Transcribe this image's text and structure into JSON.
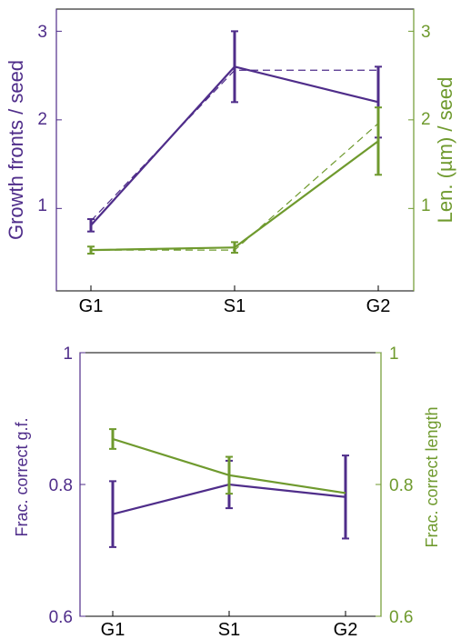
{
  "colors": {
    "left": "#4f2d8a",
    "right": "#6f9a2e",
    "axis": "#000000"
  },
  "chart_data": [
    {
      "type": "line",
      "categories": [
        "G1",
        "S1",
        "G2"
      ],
      "ylabel_left": "Growth fronts / seed",
      "ylabel_right": "Len. (µm) / seed",
      "ylim_left": [
        0.07,
        3.25
      ],
      "ylim_right": [
        0.07,
        3.25
      ],
      "yticks_left": [
        "1",
        "2",
        "3"
      ],
      "yticks_right": [
        "1",
        "2",
        "3"
      ],
      "series": [
        {
          "axis": "left",
          "style": "solid",
          "values": [
            0.81,
            2.6,
            2.2
          ],
          "err": [
            0.07,
            0.4,
            0.4
          ]
        },
        {
          "axis": "left",
          "style": "dashed",
          "values": [
            0.86,
            2.56,
            2.56
          ]
        },
        {
          "axis": "right",
          "style": "solid",
          "values": [
            0.53,
            0.56,
            1.76
          ],
          "err": [
            0.04,
            0.06,
            0.38
          ]
        },
        {
          "axis": "right",
          "style": "dashed",
          "values": [
            0.53,
            0.53,
            1.96
          ]
        }
      ]
    },
    {
      "type": "line",
      "categories": [
        "G1",
        "S1",
        "G2"
      ],
      "ylabel_left": "Frac. correct g.f.",
      "ylabel_right": "Frac. correct length",
      "ylim_left": [
        0.6,
        1.0
      ],
      "ylim_right": [
        0.6,
        1.0
      ],
      "yticks_left": [
        "0.6",
        "0.8",
        "1"
      ],
      "yticks_right": [
        "0.6",
        "0.8",
        "1"
      ],
      "series": [
        {
          "axis": "left",
          "style": "solid",
          "values": [
            0.755,
            0.8,
            0.781
          ],
          "err": [
            0.05,
            0.036,
            0.063
          ]
        },
        {
          "axis": "right",
          "style": "solid",
          "values": [
            0.869,
            0.814,
            0.787
          ],
          "err": [
            0.015,
            0.028,
            0.0
          ]
        }
      ]
    }
  ]
}
